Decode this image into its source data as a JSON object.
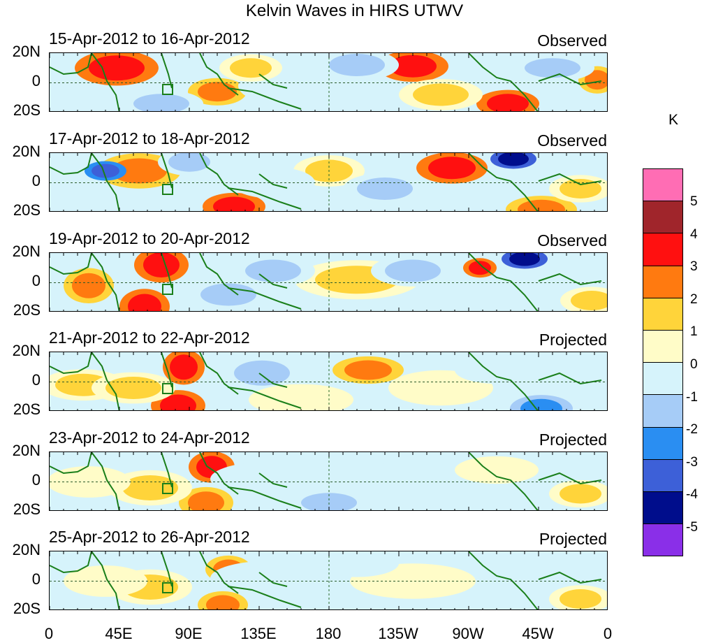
{
  "title": "Kelvin Waves in HIRS UTWV",
  "lat_labels": [
    "20N",
    "0",
    "20S"
  ],
  "lon_labels": [
    "0",
    "45E",
    "90E",
    "135E",
    "180",
    "135W",
    "90W",
    "45W",
    "0"
  ],
  "panels": [
    {
      "date": "15-Apr-2012 to 16-Apr-2012",
      "status": "Observed"
    },
    {
      "date": "17-Apr-2012 to 18-Apr-2012",
      "status": "Observed"
    },
    {
      "date": "19-Apr-2012 to 20-Apr-2012",
      "status": "Observed"
    },
    {
      "date": "21-Apr-2012 to 22-Apr-2012",
      "status": "Projected"
    },
    {
      "date": "23-Apr-2012 to 24-Apr-2012",
      "status": "Projected"
    },
    {
      "date": "25-Apr-2012 to 26-Apr-2012",
      "status": "Projected"
    }
  ],
  "colorbar": {
    "unit": "K",
    "labels": [
      "5",
      "4",
      "3",
      "2",
      "1",
      "0",
      "-1",
      "-2",
      "-3",
      "-4",
      "-5"
    ],
    "colors": [
      "#ff6db4",
      "#a0252b",
      "#ff1010",
      "#ff7a10",
      "#ffd43a",
      "#fffcc8",
      "#d6f3fb",
      "#a6ccf7",
      "#2a8ef2",
      "#3d60d8",
      "#000d8c",
      "#8a2fe8"
    ]
  },
  "colors": {
    "coast": "#1a7f1a",
    "eq_line": "#2a5a2a",
    "dateline": "#2a6a2a"
  }
}
